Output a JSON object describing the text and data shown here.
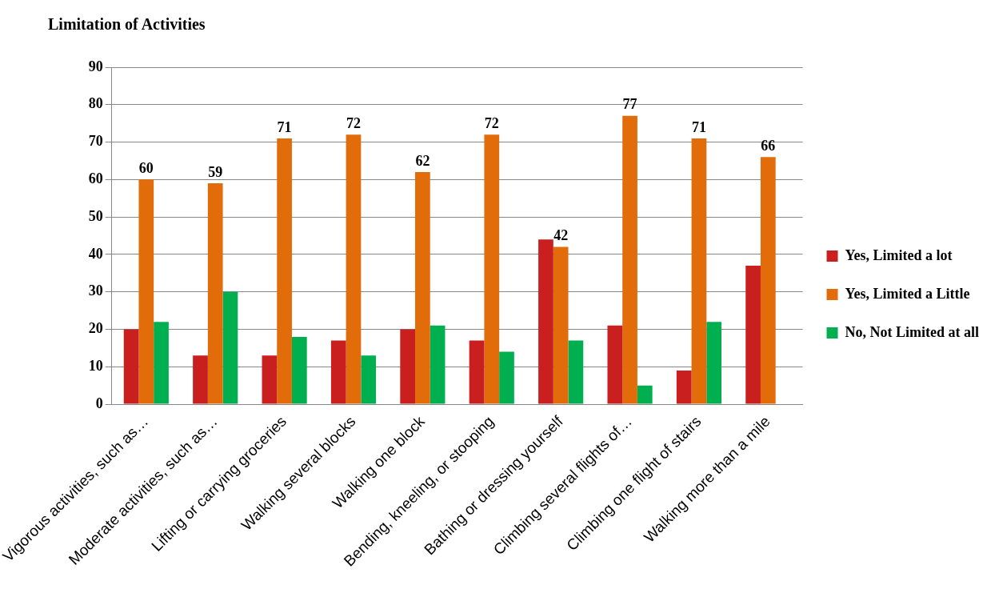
{
  "chart_data": {
    "type": "bar",
    "title": "Limitation of Activities",
    "categories": [
      "Vigorous activities, such as…",
      "Moderate activities, such as…",
      "Lifting or carrying groceries",
      "Walking several blocks",
      "Walking one block",
      "Bending, kneeling, or stooping",
      "Bathing or dressing yourself",
      "Climbing several flights of…",
      "Climbing one flight of stairs",
      "Walking more than a mile"
    ],
    "series": [
      {
        "name": "Yes, Limited a lot",
        "color": "#c91f1f",
        "values": [
          20,
          13,
          13,
          17,
          20,
          17,
          44,
          21,
          9,
          37
        ]
      },
      {
        "name": "Yes, Limited a Little",
        "color": "#e36c0a",
        "values": [
          60,
          59,
          71,
          72,
          62,
          72,
          42,
          77,
          71,
          66
        ],
        "value_labels": [
          "60",
          "59",
          "71",
          "72",
          "62",
          "72",
          "42",
          "77",
          "71",
          "66"
        ]
      },
      {
        "name": "No, Not Limited at all",
        "color": "#00b050",
        "values": [
          22,
          30,
          18,
          13,
          21,
          14,
          17,
          5,
          22,
          0
        ]
      }
    ],
    "ylim": [
      0,
      90
    ],
    "yticks": [
      0,
      10,
      20,
      30,
      40,
      50,
      60,
      70,
      80,
      90
    ],
    "grid": "y",
    "legend": "right"
  }
}
